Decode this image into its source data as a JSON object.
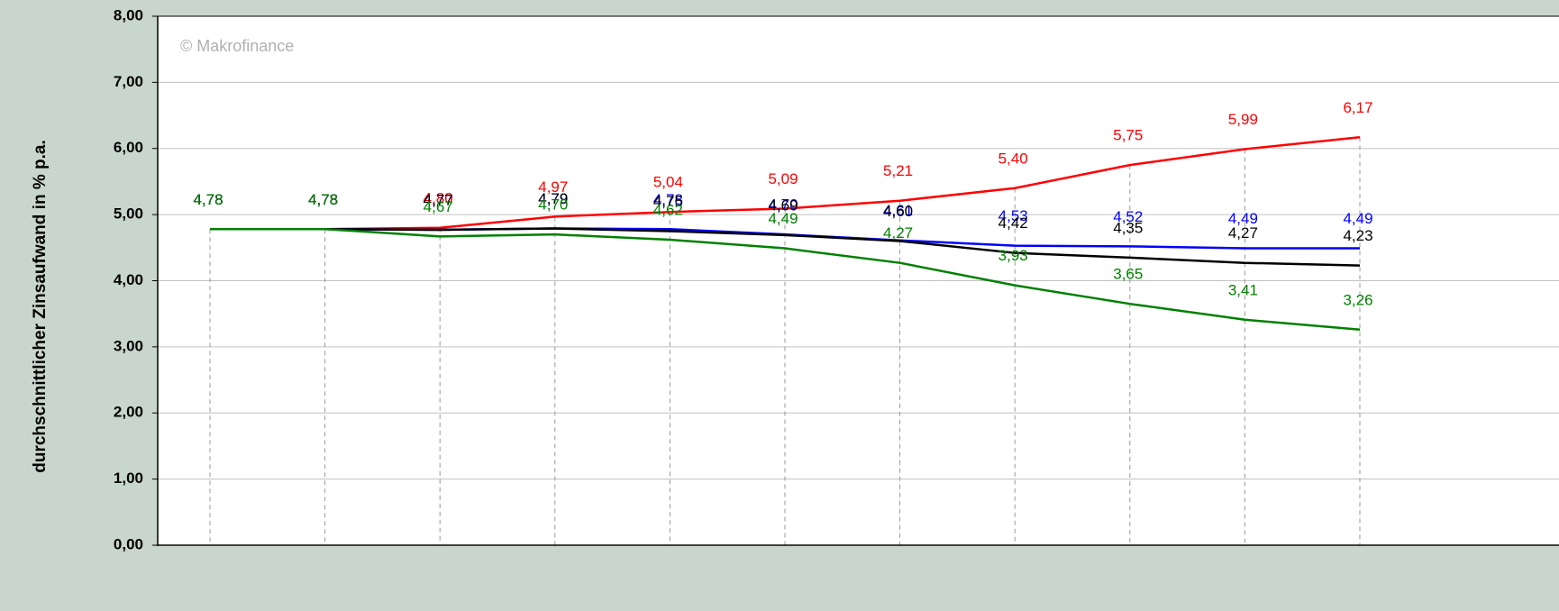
{
  "chart_data": {
    "type": "line",
    "y_label": "durchschnittlicher Zinsaufwand in % p.a.",
    "watermark": "© Makrofinance",
    "categories": [
      null,
      null,
      null,
      null,
      null,
      null,
      null,
      null,
      null,
      null,
      null
    ],
    "ylim": [
      0,
      8
    ],
    "yticks": [
      {
        "value": 0,
        "label": "0,00"
      },
      {
        "value": 1,
        "label": "1,00"
      },
      {
        "value": 2,
        "label": "2,00"
      },
      {
        "value": 3,
        "label": "3,00"
      },
      {
        "value": 4,
        "label": "4,00"
      },
      {
        "value": 5,
        "label": "5,00"
      },
      {
        "value": 6,
        "label": "6,00"
      },
      {
        "value": 7,
        "label": "7,00"
      },
      {
        "value": 8,
        "label": "8,00"
      }
    ],
    "grid": true,
    "series": [
      {
        "color": "#ff0000",
        "values": [
          4.78,
          4.78,
          4.8,
          4.97,
          5.04,
          5.09,
          5.21,
          5.4,
          5.75,
          5.99,
          6.17
        ],
        "value_labels": [
          "4,78",
          "4,78",
          "4,80",
          "4,97",
          "5,04",
          "5,09",
          "5,21",
          "5,40",
          "5,75",
          "5,99",
          "6,17"
        ]
      },
      {
        "color": "#0000ff",
        "values": [
          4.78,
          4.78,
          4.77,
          4.79,
          4.78,
          4.7,
          4.61,
          4.53,
          4.52,
          4.49,
          4.49
        ],
        "value_labels": [
          "4,78",
          "4,78",
          "4,77",
          "4,79",
          "4,78",
          "4,70",
          "4,61",
          "4,53",
          "4,52",
          "4,49",
          "4,49"
        ]
      },
      {
        "color": "#000000",
        "values": [
          4.78,
          4.78,
          4.77,
          4.79,
          4.75,
          4.69,
          4.6,
          4.42,
          4.35,
          4.27,
          4.23
        ],
        "value_labels": [
          "4,78",
          "4,78",
          "4,77",
          "4,79",
          "4,75",
          "4,69",
          "4,60",
          "4,42",
          "4,35",
          "4,27",
          "4,23"
        ]
      },
      {
        "color": "#008000",
        "values": [
          4.78,
          4.78,
          4.67,
          4.7,
          4.62,
          4.49,
          4.27,
          3.93,
          3.65,
          3.41,
          3.26
        ],
        "value_labels": [
          "4,78",
          "4,78",
          "4,67",
          "4,70",
          "4,62",
          "4,49",
          "4,27",
          "3,93",
          "3,65",
          "3,41",
          "3,26"
        ]
      }
    ]
  }
}
